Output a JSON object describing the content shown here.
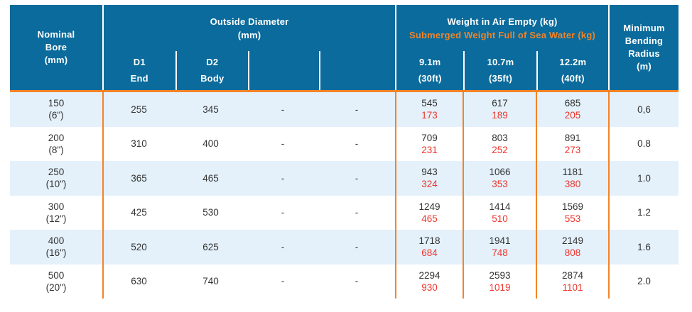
{
  "colors": {
    "header_bg": "#0a6b9c",
    "orange_line": "#f28427",
    "orange_text": "#ef8329",
    "red_text": "#ee352c",
    "light_row": "#e4f1fb",
    "dark_text": "#333333",
    "header_text": "#ffffff"
  },
  "header": {
    "nominal_bore": {
      "l1": "Nominal",
      "l2": "Bore",
      "l3": "(mm)"
    },
    "outside_diameter": {
      "title": "Outside Diameter",
      "unit": "(mm)",
      "d1": "D1",
      "d1_sub": "End",
      "d2": "D2",
      "d2_sub": "Body"
    },
    "weight": {
      "air_title": "Weight in Air Empty (kg)",
      "submerged_title": "Submerged Weight Full of Sea Water (kg)",
      "len1_m": "9.1m",
      "len1_ft": "(30ft)",
      "len2_m": "10.7m",
      "len2_ft": "(35ft)",
      "len3_m": "12.2m",
      "len3_ft": "(40ft)"
    },
    "bending": {
      "l1": "Minimum",
      "l2": "Bending",
      "l3": "Radius",
      "l4": "(m)"
    }
  },
  "rows": [
    {
      "bore_mm": "150",
      "bore_in": "(6\")",
      "d1": "255",
      "d2": "345",
      "c5": "-",
      "c6": "-",
      "w1_air": "545",
      "w1_sub": "173",
      "w2_air": "617",
      "w2_sub": "189",
      "w3_air": "685",
      "w3_sub": "205",
      "radius": "0,6"
    },
    {
      "bore_mm": "200",
      "bore_in": "(8\")",
      "d1": "310",
      "d2": "400",
      "c5": "-",
      "c6": "-",
      "w1_air": "709",
      "w1_sub": "231",
      "w2_air": "803",
      "w2_sub": "252",
      "w3_air": "891",
      "w3_sub": "273",
      "radius": "0.8"
    },
    {
      "bore_mm": "250",
      "bore_in": "(10\")",
      "d1": "365",
      "d2": "465",
      "c5": "-",
      "c6": "-",
      "w1_air": "943",
      "w1_sub": "324",
      "w2_air": "1066",
      "w2_sub": "353",
      "w3_air": "1181",
      "w3_sub": "380",
      "radius": "1.0"
    },
    {
      "bore_mm": "300",
      "bore_in": "(12\")",
      "d1": "425",
      "d2": "530",
      "c5": "-",
      "c6": "-",
      "w1_air": "1249",
      "w1_sub": "465",
      "w2_air": "1414",
      "w2_sub": "510",
      "w3_air": "1569",
      "w3_sub": "553",
      "radius": "1.2"
    },
    {
      "bore_mm": "400",
      "bore_in": "(16\")",
      "d1": "520",
      "d2": "625",
      "c5": "-",
      "c6": "-",
      "w1_air": "1718",
      "w1_sub": "684",
      "w2_air": "1941",
      "w2_sub": "748",
      "w3_air": "2149",
      "w3_sub": "808",
      "radius": "1.6"
    },
    {
      "bore_mm": "500",
      "bore_in": "(20\")",
      "d1": "630",
      "d2": "740",
      "c5": "-",
      "c6": "-",
      "w1_air": "2294",
      "w1_sub": "930",
      "w2_air": "2593",
      "w2_sub": "1019",
      "w3_air": "2874",
      "w3_sub": "1101",
      "radius": "2.0"
    }
  ]
}
